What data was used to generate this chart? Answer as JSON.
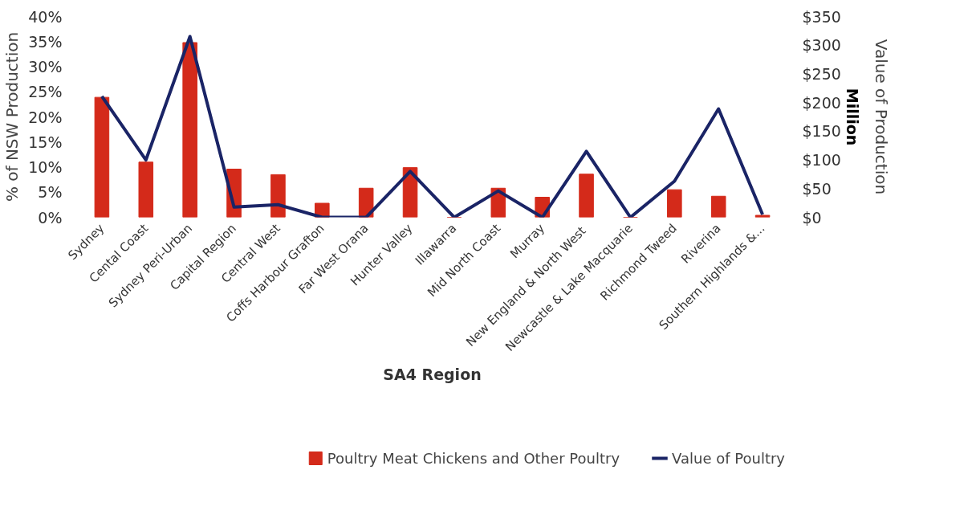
{
  "chart_data": {
    "type": "bar",
    "xlabel": "SA4 Region",
    "ylabel": "% of NSW Production",
    "y2label": "Value of Production",
    "annotations": [
      "Million"
    ],
    "categories": [
      "Sydney",
      "Cental Coast",
      "Sydney Peri-Urban",
      "Capital Region",
      "Central West",
      "Coffs Harbour Grafton",
      "Far West Orana",
      "Hunter Valley",
      "Illawarra",
      "Mid North Coast",
      "Murray",
      "New England  & North West",
      "Newcastle & Lake Macquarie",
      "Richmond Tweed",
      "Riverina",
      "Southern Highlands &..."
    ],
    "series": [
      {
        "name": "Poultry Meat Chickens and Other Poultry",
        "color": "#d42a1a",
        "values": [
          23.9,
          11.0,
          34.8,
          9.6,
          8.5,
          2.8,
          5.8,
          9.9,
          0,
          5.8,
          4.0,
          8.6,
          0,
          5.5,
          4.2,
          0.4
        ]
      },
      {
        "name": "Value of Poultry",
        "type": "line",
        "axis": "y2",
        "color": "#1a2466",
        "values": [
          211,
          100,
          315,
          18,
          22,
          0,
          0,
          80,
          0,
          46,
          0,
          115,
          0,
          63,
          189,
          5
        ]
      }
    ],
    "ylim": [
      0,
      40
    ],
    "yticks": [
      {
        "value": 0,
        "label": "0%"
      },
      {
        "value": 5,
        "label": "5%"
      },
      {
        "value": 10,
        "label": "10%"
      },
      {
        "value": 15,
        "label": "15%"
      },
      {
        "value": 20,
        "label": "20%"
      },
      {
        "value": 25,
        "label": "25%"
      },
      {
        "value": 30,
        "label": "30%"
      },
      {
        "value": 35,
        "label": "35%"
      },
      {
        "value": 40,
        "label": "40%"
      }
    ],
    "y2lim": [
      0,
      350
    ],
    "y2ticks": [
      {
        "value": 0,
        "label": "$0"
      },
      {
        "value": 50,
        "label": "$50"
      },
      {
        "value": 100,
        "label": "$100"
      },
      {
        "value": 150,
        "label": "$150"
      },
      {
        "value": 200,
        "label": "$200"
      },
      {
        "value": 250,
        "label": "$250"
      },
      {
        "value": 300,
        "label": "$300"
      },
      {
        "value": 350,
        "label": "$350"
      }
    ],
    "grid": false,
    "legend": "bottom",
    "line_style": "solid"
  }
}
